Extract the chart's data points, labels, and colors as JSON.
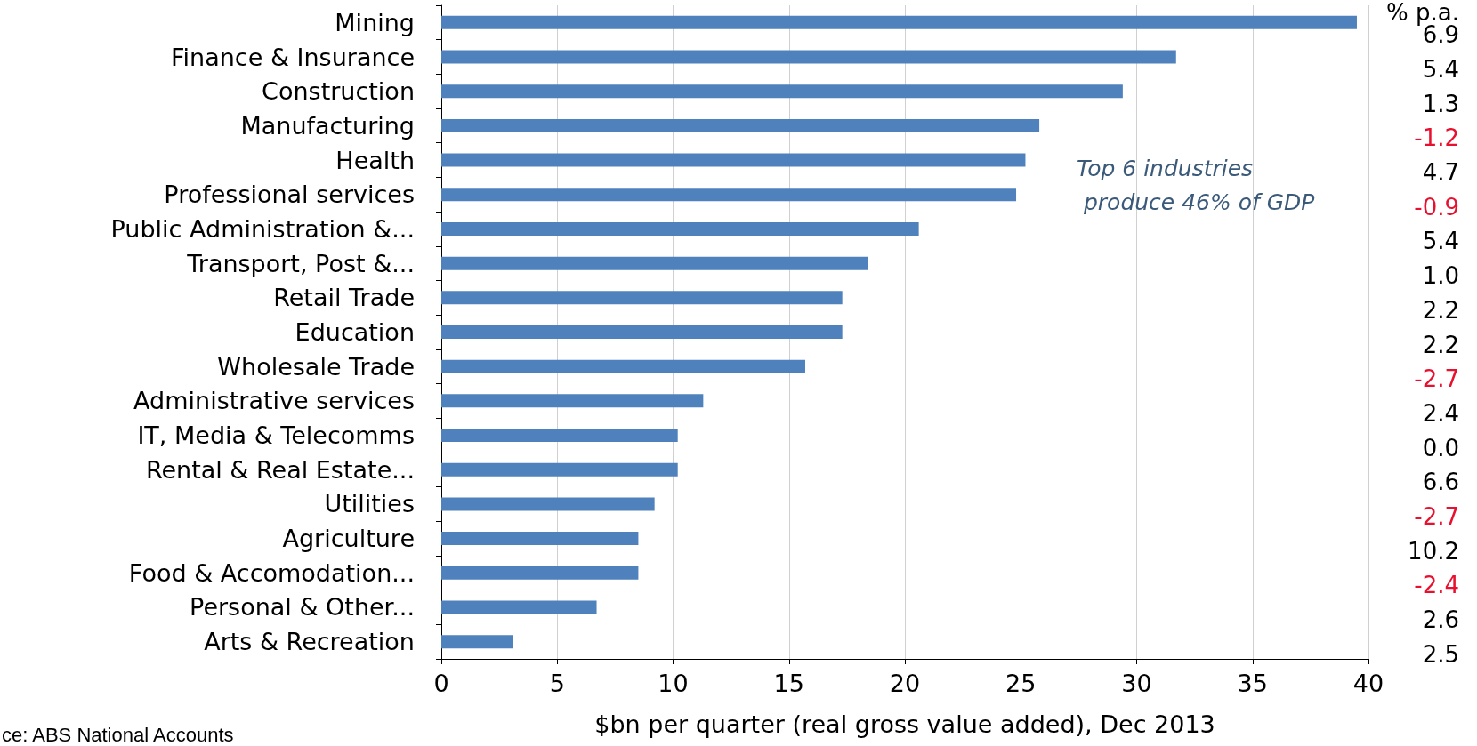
{
  "chart_data": {
    "type": "bar",
    "orientation": "horizontal",
    "xlabel": "$bn per quarter (real gross value added), Dec 2013",
    "categories": [
      "Mining",
      "Finance & Insurance",
      "Construction",
      "Manufacturing",
      "Health",
      "Professional services",
      "Public Administration &...",
      "Transport, Post &...",
      "Retail Trade",
      "Education",
      "Wholesale Trade",
      "Administrative services",
      "IT, Media & Telecomms",
      "Rental & Real Estate...",
      "Utilities",
      "Agriculture",
      "Food & Accomodation...",
      "Personal & Other...",
      "Arts & Recreation"
    ],
    "values": [
      39.5,
      31.7,
      29.4,
      25.8,
      25.2,
      24.8,
      20.6,
      18.4,
      17.3,
      17.3,
      15.7,
      11.3,
      10.2,
      10.2,
      9.2,
      8.5,
      8.5,
      6.7,
      3.1
    ],
    "color": "#4f81bd",
    "xlim": [
      0,
      40
    ],
    "xticks": [
      0,
      5,
      10,
      15,
      20,
      25,
      30,
      35,
      40
    ],
    "grid": "x",
    "annotations": [
      "Top 6 industries\n produce 46% of GDP",
      "% p.a.",
      "ce: ABS National Accounts",
      "6.9",
      "5.4",
      "1.3",
      "-1.2",
      "4.7",
      "-0.9",
      "5.4",
      "1.0",
      "2.2",
      "2.2",
      "-2.7",
      "2.4",
      "0.0",
      "6.6",
      "-2.7",
      "10.2",
      "-2.4",
      "2.6",
      "2.5"
    ]
  }
}
